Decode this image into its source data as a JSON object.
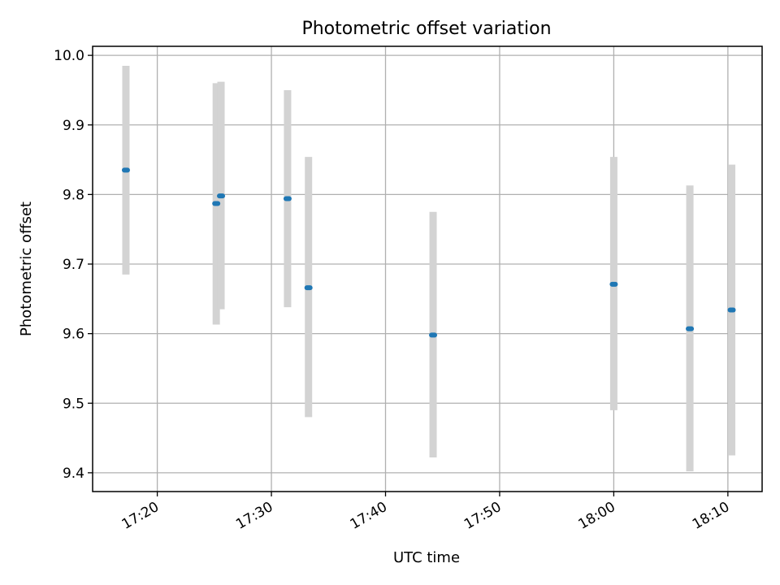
{
  "chart_data": {
    "type": "scatter",
    "title": "Photometric offset variation",
    "xlabel": "UTC time",
    "ylabel": "Photometric offset",
    "x_ticks": [
      "17:20",
      "17:30",
      "17:40",
      "17:50",
      "18:00",
      "18:10"
    ],
    "y_ticks": [
      "9.4",
      "9.5",
      "9.6",
      "9.7",
      "9.8",
      "9.9",
      "10.0"
    ],
    "xlim": [
      "17:14:20",
      "18:13:00"
    ],
    "ylim": [
      9.373,
      10.013
    ],
    "grid": true,
    "colors": {
      "points": "#1f77b4",
      "errorbars": "#d3d3d3",
      "grid": "#b0b0b0"
    },
    "points": [
      {
        "x": "17:17:15",
        "y": 9.835,
        "y_low": 9.685,
        "y_high": 9.985
      },
      {
        "x": "17:25:10",
        "y": 9.787,
        "y_low": 9.613,
        "y_high": 9.96
      },
      {
        "x": "17:25:35",
        "y": 9.798,
        "y_low": 9.635,
        "y_high": 9.962
      },
      {
        "x": "17:31:25",
        "y": 9.794,
        "y_low": 9.638,
        "y_high": 9.95
      },
      {
        "x": "17:33:15",
        "y": 9.666,
        "y_low": 9.48,
        "y_high": 9.854
      },
      {
        "x": "17:44:10",
        "y": 9.598,
        "y_low": 9.422,
        "y_high": 9.775
      },
      {
        "x": "18:00:00",
        "y": 9.671,
        "y_low": 9.49,
        "y_high": 9.854
      },
      {
        "x": "18:06:40",
        "y": 9.607,
        "y_low": 9.402,
        "y_high": 9.813
      },
      {
        "x": "18:10:20",
        "y": 9.634,
        "y_low": 9.425,
        "y_high": 9.843
      }
    ]
  }
}
